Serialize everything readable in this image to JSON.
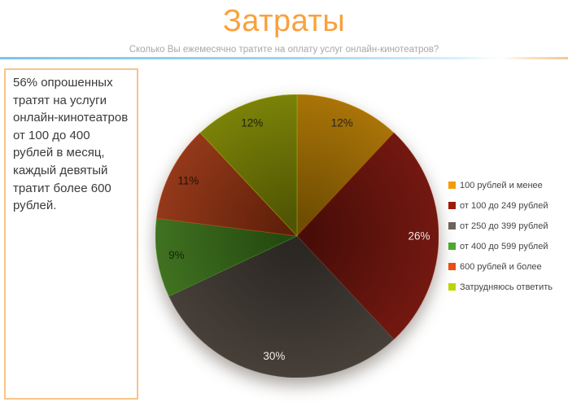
{
  "slide": {
    "title": "Затраты",
    "subtitle": "Сколько Вы ежемесячно тратите на оплату услуг онлайн-кинотеатров?",
    "title_color": "#F9A13C",
    "subtitle_color": "#A8A8A8",
    "divider_gradient": [
      "#7CC4F0",
      "#9ED3F3",
      "#D9EFFB",
      "#FFFFFF",
      "#F8DFBA",
      "#F2C892"
    ]
  },
  "commentary": {
    "text": "56% опрошенных тратят на услуги онлайн-кинотеатров от 100 до 400 рублей в месяц, каждый девятый тратит более 600 рублей.",
    "border_color": "#F7C488",
    "text_color": "#3A3A3A"
  },
  "chart_data": {
    "type": "pie",
    "title": "Затраты",
    "question": "Сколько Вы ежемесячно тратите на оплату услуг онлайн-кинотеатров?",
    "unit": "%",
    "start_angle_deg": 0,
    "direction": "clockwise",
    "legend_position": "right",
    "categories": [
      "100 рублей и менее",
      "от 100 до 249 рублей",
      "от 250 до 399 рублей",
      "от 400 до 599 рублей",
      "600 рублей и более",
      "Затрудняюсь ответить"
    ],
    "values": [
      12,
      26,
      30,
      9,
      11,
      12
    ],
    "slices": [
      {
        "label": "100 рублей и менее",
        "value": 12,
        "legend_color": "#F59B00",
        "gradient_center": "#6F4D02",
        "gradient_edge": "#A97408",
        "label_color": "#262321"
      },
      {
        "label": "от 100 до 249 рублей",
        "value": 26,
        "legend_color": "#9E1A05",
        "gradient_center": "#490D08",
        "gradient_edge": "#731811",
        "label_color": "#EFE6E2"
      },
      {
        "label": "от 250 до 399 рублей",
        "value": 30,
        "legend_color": "#6E6259",
        "gradient_center": "#2B2723",
        "gradient_edge": "#474039",
        "label_color": "#EDE9E4"
      },
      {
        "label": "от 400 до 599 рублей",
        "value": 9,
        "legend_color": "#4EA72E",
        "gradient_center": "#254A10",
        "gradient_edge": "#407221",
        "label_color": "#16240C"
      },
      {
        "label": "600 рублей и более",
        "value": 11,
        "legend_color": "#EA4E12",
        "gradient_center": "#60200A",
        "gradient_edge": "#94391A",
        "label_color": "#261009"
      },
      {
        "label": "Затрудняюсь ответить",
        "value": 12,
        "legend_color": "#BCD500",
        "gradient_center": "#505503",
        "gradient_edge": "#7B8208",
        "label_color": "#20220A"
      }
    ]
  }
}
